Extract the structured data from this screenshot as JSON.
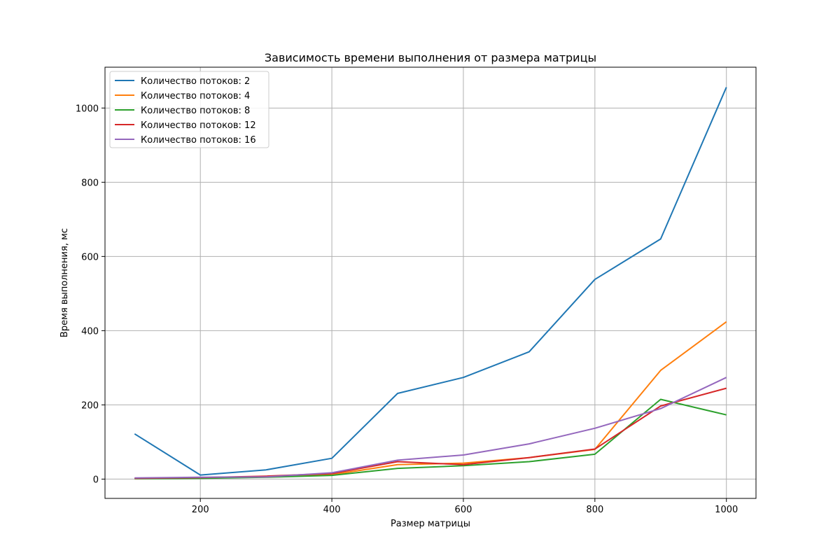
{
  "chart_data": {
    "type": "line",
    "title": "Зависимость времени выполнения от размера матрицы",
    "xlabel": "Размер матрицы",
    "ylabel": "Время выполнения, мс",
    "xlim": [
      55,
      1045
    ],
    "ylim": [
      -52,
      1110
    ],
    "xticks": [
      200,
      400,
      600,
      800,
      1000
    ],
    "yticks": [
      0,
      200,
      400,
      600,
      800,
      1000
    ],
    "grid": true,
    "legend_position": "top-left",
    "x": [
      100,
      200,
      300,
      400,
      500,
      600,
      700,
      800,
      900,
      1000
    ],
    "series": [
      {
        "name": "Количество потоков: 2",
        "color": "#1f77b4",
        "values": [
          122,
          11,
          25,
          56,
          231,
          274,
          343,
          538,
          647,
          1056
        ]
      },
      {
        "name": "Количество потоков: 4",
        "color": "#ff7f0e",
        "values": [
          2,
          3,
          7,
          12,
          39,
          43,
          58,
          80,
          293,
          424
        ]
      },
      {
        "name": "Количество потоков: 8",
        "color": "#2ca02c",
        "values": [
          1,
          2,
          5,
          10,
          29,
          36,
          47,
          67,
          215,
          173
        ]
      },
      {
        "name": "Количество потоков: 12",
        "color": "#d62728",
        "values": [
          2,
          4,
          8,
          15,
          47,
          39,
          58,
          81,
          197,
          245
        ]
      },
      {
        "name": "Количество потоков: 16",
        "color": "#9467bd",
        "values": [
          3,
          5,
          6,
          17,
          51,
          65,
          95,
          137,
          190,
          274
        ]
      }
    ]
  }
}
